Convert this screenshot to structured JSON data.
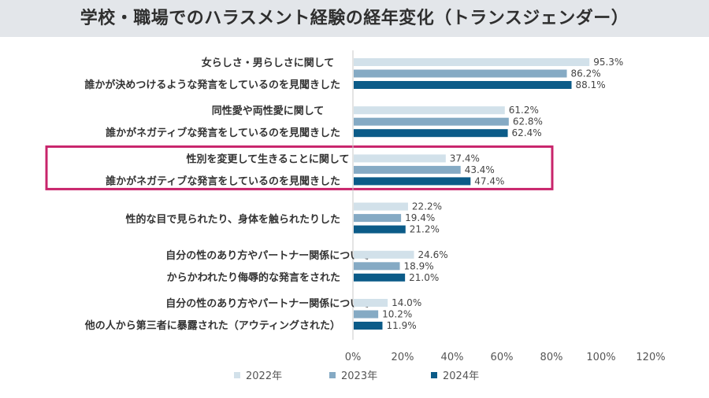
{
  "title": "学校・職場でのハラスメント経験の経年変化（トランスジェンダー）",
  "colors": {
    "s2022": "#d2e1ea",
    "s2023": "#85aac4",
    "s2024": "#0b5b88",
    "highlight": "#c8246b"
  },
  "chart_data": {
    "type": "bar",
    "orientation": "horizontal",
    "title": "学校・職場でのハラスメント経験の経年変化（トランスジェンダー）",
    "categories": [
      [
        "女らしさ・男らしさに関して",
        "誰かが決めつけるような発言をしているのを見聞きした"
      ],
      [
        "同性愛や両性愛に関して",
        "誰かがネガティブな発言をしているのを見聞きした"
      ],
      [
        "性別を変更して生きることに関して",
        "誰かがネガティブな発言をしているのを見聞きした"
      ],
      [
        "性的な目で見られたり、身体を触られたりした"
      ],
      [
        "自分の性のあり方やパートナー関係について",
        "からかわれたり侮辱的な発言をされた"
      ],
      [
        "自分の性のあり方やパートナー関係について",
        "他の人から第三者に暴露された（アウティングされた）"
      ]
    ],
    "series": [
      {
        "name": "2022年",
        "values": [
          95.3,
          61.2,
          37.4,
          22.2,
          24.6,
          14.0
        ]
      },
      {
        "name": "2023年",
        "values": [
          86.2,
          62.8,
          43.4,
          19.4,
          18.9,
          10.2
        ]
      },
      {
        "name": "2024年",
        "values": [
          88.1,
          62.4,
          47.4,
          21.2,
          21.0,
          11.9
        ]
      }
    ],
    "data_labels": [
      [
        "95.3%",
        "61.2%",
        "37.4%",
        "22.2%",
        "24.6%",
        "14.0%"
      ],
      [
        "86.2%",
        "62.8%",
        "43.4%",
        "19.4%",
        "18.9%",
        "10.2%"
      ],
      [
        "88.1%",
        "62.4%",
        "47.4%",
        "21.2%",
        "21.0%",
        "11.9%"
      ]
    ],
    "xlim": [
      0,
      120
    ],
    "xticks": [
      0,
      20,
      40,
      60,
      80,
      100,
      120
    ],
    "xtick_labels": [
      "0%",
      "20%",
      "40%",
      "60%",
      "80%",
      "100%",
      "120%"
    ],
    "highlighted_category": 2,
    "legend_position": "bottom",
    "grid": false
  }
}
